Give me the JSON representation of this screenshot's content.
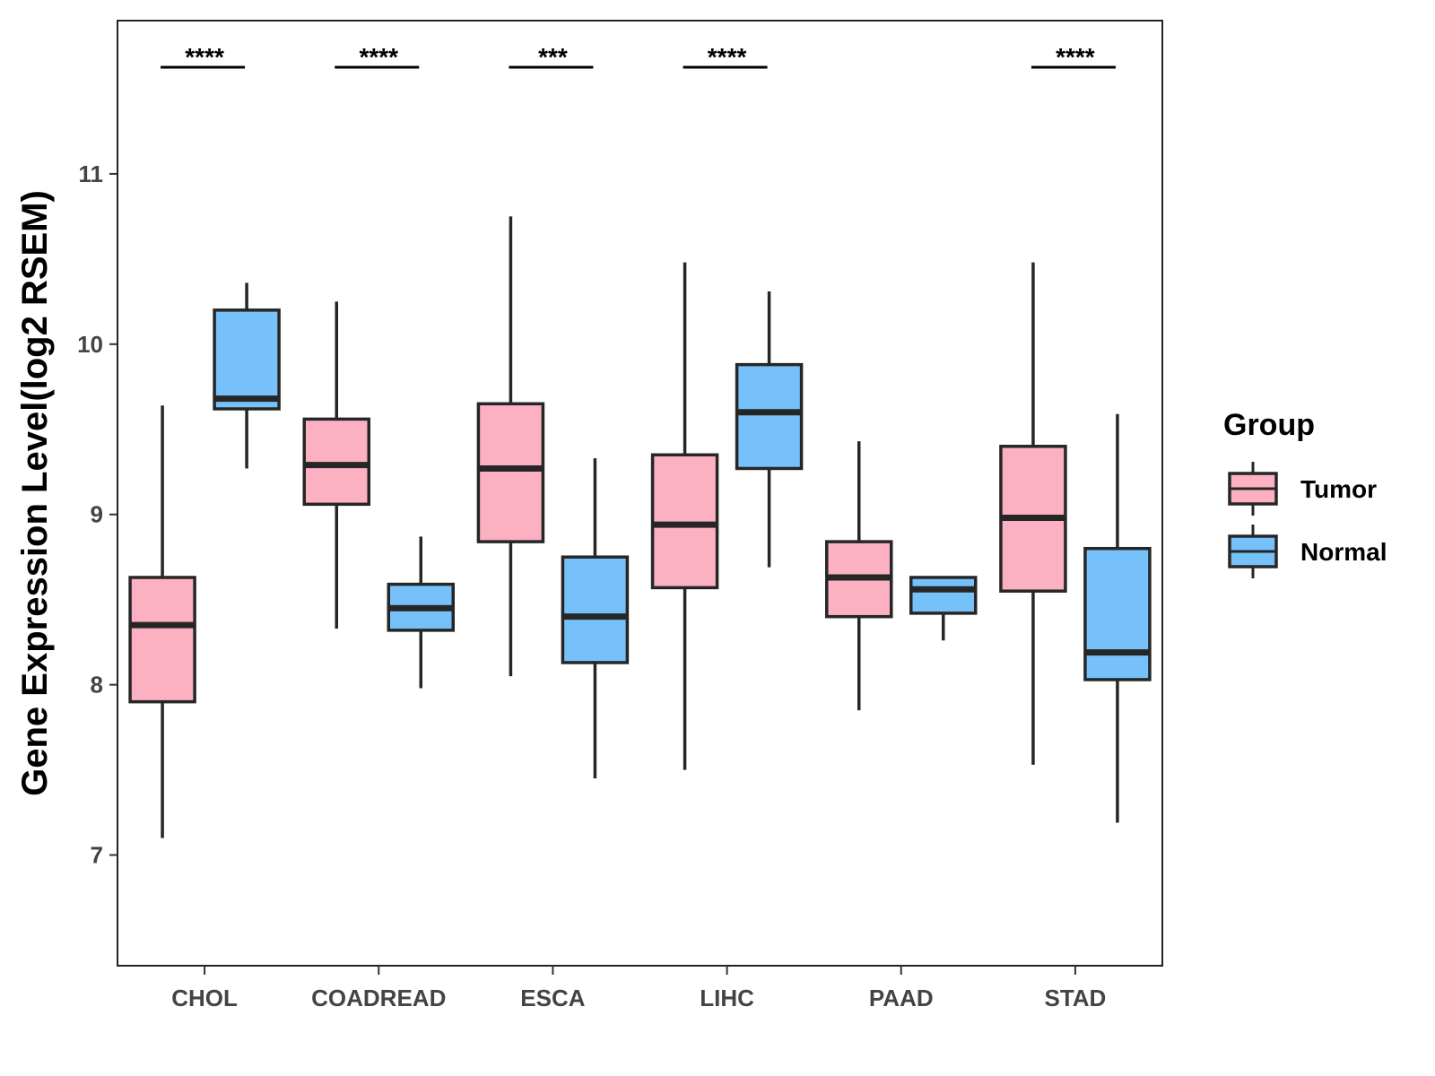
{
  "chart_data": {
    "type": "boxplot",
    "title": "",
    "xlabel": "",
    "ylabel": "Gene Expression Level(log2 RSEM)",
    "ylim": [
      6.35,
      11.9
    ],
    "yticks": [
      7,
      8,
      9,
      10,
      11
    ],
    "categories": [
      "CHOL",
      "COADREAD",
      "ESCA",
      "LIHC",
      "PAAD",
      "STAD"
    ],
    "legend": {
      "title": "Group",
      "position": "right"
    },
    "series": [
      {
        "name": "Tumor",
        "color": "#FBB1C2",
        "boxes": [
          {
            "min": 7.1,
            "q1": 7.9,
            "median": 8.35,
            "q3": 8.63,
            "max": 9.64
          },
          {
            "min": 8.33,
            "q1": 9.06,
            "median": 9.29,
            "q3": 9.56,
            "max": 10.25
          },
          {
            "min": 8.05,
            "q1": 8.84,
            "median": 9.27,
            "q3": 9.65,
            "max": 10.75
          },
          {
            "min": 7.5,
            "q1": 8.57,
            "median": 8.94,
            "q3": 9.35,
            "max": 10.48
          },
          {
            "min": 7.85,
            "q1": 8.4,
            "median": 8.63,
            "q3": 8.84,
            "max": 9.43
          },
          {
            "min": 7.53,
            "q1": 8.55,
            "median": 8.98,
            "q3": 9.4,
            "max": 10.48
          }
        ]
      },
      {
        "name": "Normal",
        "color": "#76C1FA",
        "boxes": [
          {
            "min": 9.27,
            "q1": 9.62,
            "median": 9.68,
            "q3": 10.2,
            "max": 10.36
          },
          {
            "min": 7.98,
            "q1": 8.32,
            "median": 8.45,
            "q3": 8.59,
            "max": 8.87
          },
          {
            "min": 7.45,
            "q1": 8.13,
            "median": 8.4,
            "q3": 8.75,
            "max": 9.33
          },
          {
            "min": 8.69,
            "q1": 9.27,
            "median": 9.6,
            "q3": 9.88,
            "max": 10.31
          },
          {
            "min": 8.26,
            "q1": 8.42,
            "median": 8.56,
            "q3": 8.63,
            "max": 8.63
          },
          {
            "min": 7.19,
            "q1": 8.03,
            "median": 8.19,
            "q3": 8.8,
            "max": 9.59
          }
        ]
      }
    ],
    "significance": [
      "****",
      "****",
      "***",
      "****",
      "",
      "****"
    ]
  }
}
